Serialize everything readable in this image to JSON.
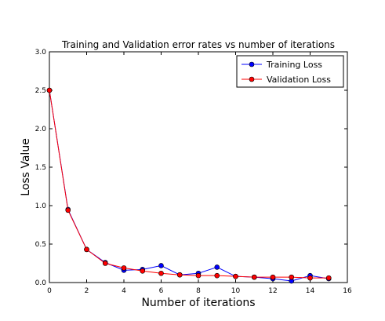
{
  "chart_data": {
    "type": "line",
    "title": "Training and Validation error rates vs number of iterations",
    "xlabel": "Number of iterations",
    "ylabel": "Loss Value",
    "xlim": [
      0,
      16
    ],
    "ylim": [
      0,
      3.0
    ],
    "xticks": [
      "0",
      "2",
      "4",
      "6",
      "8",
      "10",
      "12",
      "14",
      "16"
    ],
    "yticks": [
      "0.0",
      "0.5",
      "1.0",
      "1.5",
      "2.0",
      "2.5",
      "3.0"
    ],
    "grid": false,
    "legend_position": "top-right",
    "x": [
      0,
      1,
      2,
      3,
      4,
      5,
      6,
      7,
      8,
      9,
      10,
      11,
      12,
      13,
      14,
      15
    ],
    "series": [
      {
        "name": "Training Loss",
        "color": "#0000ff",
        "values": [
          2.5,
          0.95,
          0.43,
          0.26,
          0.16,
          0.17,
          0.22,
          0.1,
          0.12,
          0.2,
          0.08,
          0.07,
          0.05,
          0.02,
          0.09,
          0.05
        ]
      },
      {
        "name": "Validation Loss",
        "color": "#ff0000",
        "values": [
          2.5,
          0.94,
          0.43,
          0.25,
          0.19,
          0.15,
          0.12,
          0.1,
          0.09,
          0.09,
          0.08,
          0.07,
          0.07,
          0.07,
          0.06,
          0.06
        ]
      }
    ]
  }
}
